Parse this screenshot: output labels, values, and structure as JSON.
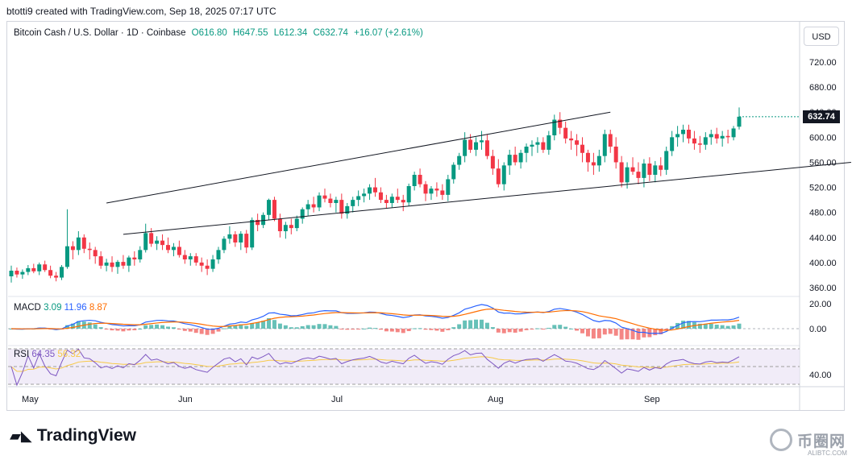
{
  "header": {
    "created_by": "btotti9 created with TradingView.com, Sep 18, 2025 07:17 UTC"
  },
  "legend": {
    "symbol": "Bitcoin Cash / U.S. Dollar · 1D · Coinbase",
    "open": "O616.80",
    "high": "H647.55",
    "low": "L612.34",
    "close": "C632.74",
    "change": "+16.07 (+2.61%)"
  },
  "currency_button": "USD",
  "last_price_label": "632.74",
  "macd": {
    "label": "MACD",
    "v1": "3.09",
    "v2": "11.96",
    "v3": "8.87"
  },
  "rsi": {
    "label": "RSI",
    "v1": "64.35",
    "v2": "56.32"
  },
  "footer": {
    "brand": "TradingView"
  },
  "watermark": {
    "name": "币圈网",
    "domain": "ALIBTC.COM"
  },
  "colors": {
    "up": "#089981",
    "down": "#f23645",
    "macd": "#2962ff",
    "signal": "#ff6d00",
    "rsi": "#7e57c2",
    "rsi_ma": "#f7c948"
  },
  "chart_data": {
    "type": "candlestick",
    "y_axis_ticks": [
      720,
      680,
      640,
      600,
      560,
      520,
      480,
      440,
      400,
      360
    ],
    "x_axis_ticks": [
      "May",
      "Jun",
      "Jul",
      "Aug",
      "Sep"
    ],
    "macd_ticks": [
      "20.00",
      "0.00"
    ],
    "rsi_ticks": [
      "40.00"
    ],
    "ylim": [
      345,
      765
    ],
    "last_close": 632.74,
    "candles": [
      [
        378,
        395,
        368,
        387
      ],
      [
        387,
        392,
        376,
        381
      ],
      [
        381,
        389,
        374,
        385
      ],
      [
        385,
        396,
        380,
        391
      ],
      [
        391,
        398,
        383,
        386
      ],
      [
        386,
        400,
        380,
        397
      ],
      [
        397,
        403,
        385,
        388
      ],
      [
        388,
        395,
        375,
        379
      ],
      [
        379,
        385,
        370,
        376
      ],
      [
        376,
        396,
        372,
        393
      ],
      [
        393,
        485,
        390,
        426
      ],
      [
        426,
        434,
        405,
        420
      ],
      [
        420,
        450,
        412,
        440
      ],
      [
        440,
        445,
        415,
        422
      ],
      [
        422,
        432,
        405,
        420
      ],
      [
        420,
        425,
        398,
        410
      ],
      [
        410,
        418,
        390,
        395
      ],
      [
        395,
        406,
        386,
        400
      ],
      [
        400,
        410,
        385,
        393
      ],
      [
        393,
        404,
        382,
        401
      ],
      [
        401,
        412,
        390,
        395
      ],
      [
        395,
        411,
        385,
        408
      ],
      [
        408,
        418,
        395,
        405
      ],
      [
        405,
        426,
        400,
        420
      ],
      [
        420,
        462,
        416,
        447
      ],
      [
        447,
        455,
        425,
        430
      ],
      [
        430,
        442,
        420,
        435
      ],
      [
        435,
        445,
        420,
        428
      ],
      [
        428,
        440,
        415,
        420
      ],
      [
        420,
        431,
        410,
        425
      ],
      [
        425,
        435,
        408,
        412
      ],
      [
        412,
        420,
        398,
        405
      ],
      [
        405,
        415,
        395,
        410
      ],
      [
        410,
        415,
        395,
        400
      ],
      [
        400,
        408,
        385,
        395
      ],
      [
        395,
        405,
        380,
        390
      ],
      [
        390,
        412,
        385,
        405
      ],
      [
        405,
        425,
        398,
        420
      ],
      [
        420,
        442,
        415,
        438
      ],
      [
        438,
        458,
        430,
        445
      ],
      [
        445,
        450,
        425,
        432
      ],
      [
        432,
        450,
        420,
        446
      ],
      [
        446,
        452,
        415,
        424
      ],
      [
        424,
        472,
        420,
        468
      ],
      [
        468,
        478,
        450,
        460
      ],
      [
        460,
        480,
        455,
        476
      ],
      [
        476,
        502,
        468,
        500
      ],
      [
        500,
        505,
        466,
        470
      ],
      [
        470,
        478,
        440,
        450
      ],
      [
        450,
        465,
        438,
        460
      ],
      [
        460,
        470,
        445,
        455
      ],
      [
        455,
        475,
        450,
        470
      ],
      [
        470,
        488,
        462,
        485
      ],
      [
        485,
        500,
        475,
        493
      ],
      [
        493,
        505,
        480,
        488
      ],
      [
        488,
        512,
        482,
        507
      ],
      [
        507,
        518,
        496,
        502
      ],
      [
        502,
        510,
        488,
        495
      ],
      [
        495,
        505,
        480,
        500
      ],
      [
        500,
        510,
        470,
        478
      ],
      [
        478,
        495,
        470,
        490
      ],
      [
        490,
        505,
        480,
        500
      ],
      [
        500,
        515,
        490,
        506
      ],
      [
        506,
        518,
        496,
        510
      ],
      [
        510,
        525,
        500,
        520
      ],
      [
        520,
        535,
        505,
        512
      ],
      [
        512,
        520,
        495,
        500
      ],
      [
        500,
        508,
        486,
        495
      ],
      [
        495,
        510,
        488,
        505
      ],
      [
        505,
        518,
        495,
        500
      ],
      [
        500,
        508,
        482,
        496
      ],
      [
        496,
        526,
        490,
        522
      ],
      [
        522,
        545,
        515,
        540
      ],
      [
        540,
        550,
        520,
        525
      ],
      [
        525,
        530,
        498,
        510
      ],
      [
        510,
        522,
        500,
        518
      ],
      [
        518,
        528,
        505,
        515
      ],
      [
        515,
        525,
        500,
        508
      ],
      [
        508,
        540,
        498,
        533
      ],
      [
        533,
        560,
        526,
        556
      ],
      [
        556,
        575,
        548,
        570
      ],
      [
        570,
        608,
        560,
        596
      ],
      [
        596,
        605,
        575,
        580
      ],
      [
        580,
        600,
        570,
        592
      ],
      [
        592,
        610,
        580,
        595
      ],
      [
        595,
        605,
        565,
        570
      ],
      [
        570,
        580,
        540,
        550
      ],
      [
        550,
        565,
        520,
        525
      ],
      [
        525,
        560,
        515,
        555
      ],
      [
        555,
        580,
        540,
        572
      ],
      [
        572,
        585,
        555,
        560
      ],
      [
        560,
        580,
        550,
        575
      ],
      [
        575,
        590,
        560,
        585
      ],
      [
        585,
        595,
        570,
        588
      ],
      [
        588,
        600,
        575,
        592
      ],
      [
        592,
        600,
        575,
        580
      ],
      [
        580,
        610,
        572,
        603
      ],
      [
        603,
        636,
        595,
        628
      ],
      [
        628,
        640,
        605,
        615
      ],
      [
        615,
        625,
        590,
        598
      ],
      [
        598,
        610,
        580,
        595
      ],
      [
        595,
        605,
        570,
        588
      ],
      [
        588,
        600,
        560,
        575
      ],
      [
        575,
        580,
        545,
        560
      ],
      [
        560,
        575,
        540,
        555
      ],
      [
        555,
        580,
        545,
        570
      ],
      [
        570,
        612,
        560,
        605
      ],
      [
        605,
        612,
        575,
        585
      ],
      [
        585,
        600,
        550,
        560
      ],
      [
        560,
        570,
        520,
        528
      ],
      [
        528,
        560,
        518,
        552
      ],
      [
        552,
        568,
        540,
        545
      ],
      [
        545,
        560,
        525,
        535
      ],
      [
        535,
        565,
        520,
        558
      ],
      [
        558,
        568,
        530,
        540
      ],
      [
        540,
        562,
        528,
        555
      ],
      [
        555,
        568,
        538,
        548
      ],
      [
        548,
        585,
        540,
        578
      ],
      [
        578,
        610,
        570,
        600
      ],
      [
        600,
        618,
        585,
        605
      ],
      [
        605,
        620,
        592,
        612
      ],
      [
        612,
        620,
        590,
        598
      ],
      [
        598,
        610,
        580,
        590
      ],
      [
        590,
        602,
        575,
        588
      ],
      [
        588,
        608,
        580,
        600
      ],
      [
        600,
        612,
        588,
        605
      ],
      [
        605,
        615,
        590,
        598
      ],
      [
        598,
        610,
        585,
        602
      ],
      [
        602,
        612,
        590,
        600
      ],
      [
        600,
        618,
        595,
        614
      ],
      [
        616.8,
        647.55,
        612.34,
        632.74
      ]
    ],
    "trendlines": [
      {
        "from": [
          17,
          495
        ],
        "to": [
          107,
          640
        ]
      },
      {
        "from": [
          20,
          445
        ],
        "to": [
          150,
          560
        ]
      }
    ]
  }
}
